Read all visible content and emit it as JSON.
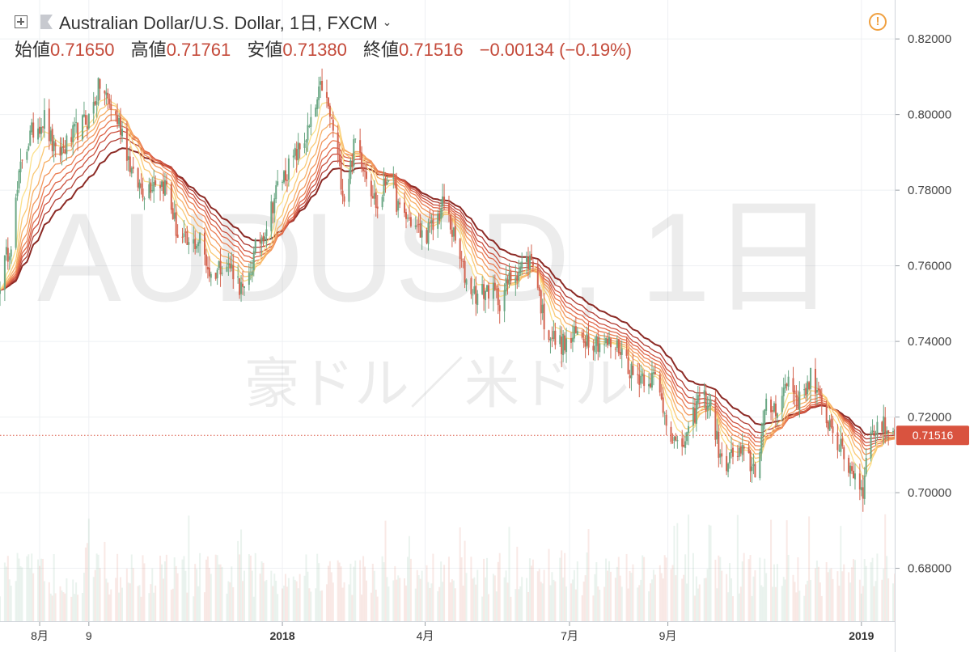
{
  "header": {
    "symbol_title": "Australian Dollar/U.S. Dollar, 1日, FXCM",
    "open_label": "始値",
    "open_value": "0.71650",
    "high_label": "高値",
    "high_value": "0.71761",
    "low_label": "安値",
    "low_value": "0.71380",
    "close_label": "終値",
    "close_value": "0.71516",
    "change": "−0.00134 (−0.19%)",
    "alert_glyph": "!"
  },
  "watermark": {
    "line1": "AUDUSD, 1日",
    "line2": "豪ドル／米ドル"
  },
  "colors": {
    "up": "#6aa784",
    "down": "#d4634f",
    "last_price_bg": "#d9533f",
    "ribbon": [
      "#fbe08a",
      "#fac872",
      "#f7ae64",
      "#f2955a",
      "#ea7c51",
      "#de6548",
      "#cc503e",
      "#b03c32",
      "#8c2a25"
    ]
  },
  "chart_data": {
    "type": "candlestick",
    "title": "Australian Dollar/U.S. Dollar, 1日, FXCM",
    "ylim": [
      0.666,
      0.8303
    ],
    "y_ticks": [
      {
        "value": 0.82,
        "label": "0.82000"
      },
      {
        "value": 0.8,
        "label": "0.80000"
      },
      {
        "value": 0.78,
        "label": "0.78000"
      },
      {
        "value": 0.76,
        "label": "0.76000"
      },
      {
        "value": 0.74,
        "label": "0.74000"
      },
      {
        "value": 0.72,
        "label": "0.72000"
      },
      {
        "value": 0.7,
        "label": "0.70000"
      },
      {
        "value": 0.68,
        "label": "0.68000"
      }
    ],
    "x_range": [
      "2017-07-07",
      "2019-01-22"
    ],
    "x_ticks": [
      {
        "date": "2017-08-01",
        "label": "8月",
        "bold": false
      },
      {
        "date": "2017-09-01",
        "label": "9",
        "bold": false
      },
      {
        "date": "2018-01-01",
        "label": "2018",
        "bold": true
      },
      {
        "date": "2018-04-01",
        "label": "4月",
        "bold": false
      },
      {
        "date": "2018-07-01",
        "label": "7月",
        "bold": false
      },
      {
        "date": "2018-09-01",
        "label": "9月",
        "bold": false
      },
      {
        "date": "2019-01-01",
        "label": "2019",
        "bold": true
      }
    ],
    "last_price": {
      "value": 0.71516,
      "label": "0.71516"
    },
    "price_path": [
      [
        "2017-07-07",
        0.756
      ],
      [
        "2017-07-14",
        0.767
      ],
      [
        "2017-07-21",
        0.789
      ],
      [
        "2017-07-28",
        0.796
      ],
      [
        "2017-08-04",
        0.799
      ],
      [
        "2017-08-11",
        0.789
      ],
      [
        "2017-08-18",
        0.792
      ],
      [
        "2017-08-25",
        0.796
      ],
      [
        "2017-09-01",
        0.799
      ],
      [
        "2017-09-08",
        0.808
      ],
      [
        "2017-09-15",
        0.802
      ],
      [
        "2017-09-22",
        0.796
      ],
      [
        "2017-09-29",
        0.783
      ],
      [
        "2017-10-06",
        0.78
      ],
      [
        "2017-10-13",
        0.783
      ],
      [
        "2017-10-20",
        0.781
      ],
      [
        "2017-10-27",
        0.768
      ],
      [
        "2017-11-03",
        0.765
      ],
      [
        "2017-11-10",
        0.767
      ],
      [
        "2017-11-17",
        0.757
      ],
      [
        "2017-11-24",
        0.761
      ],
      [
        "2017-12-01",
        0.759
      ],
      [
        "2017-12-08",
        0.752
      ],
      [
        "2017-12-15",
        0.764
      ],
      [
        "2017-12-22",
        0.771
      ],
      [
        "2017-12-29",
        0.781
      ],
      [
        "2018-01-05",
        0.786
      ],
      [
        "2018-01-12",
        0.791
      ],
      [
        "2018-01-19",
        0.797
      ],
      [
        "2018-01-26",
        0.808
      ],
      [
        "2018-02-02",
        0.796
      ],
      [
        "2018-02-09",
        0.778
      ],
      [
        "2018-02-16",
        0.793
      ],
      [
        "2018-02-23",
        0.785
      ],
      [
        "2018-03-02",
        0.775
      ],
      [
        "2018-03-09",
        0.785
      ],
      [
        "2018-03-16",
        0.774
      ],
      [
        "2018-03-23",
        0.772
      ],
      [
        "2018-03-30",
        0.768
      ],
      [
        "2018-04-06",
        0.77
      ],
      [
        "2018-04-13",
        0.777
      ],
      [
        "2018-04-20",
        0.766
      ],
      [
        "2018-04-27",
        0.756
      ],
      [
        "2018-05-04",
        0.752
      ],
      [
        "2018-05-11",
        0.754
      ],
      [
        "2018-05-18",
        0.751
      ],
      [
        "2018-05-25",
        0.757
      ],
      [
        "2018-06-01",
        0.76
      ],
      [
        "2018-06-08",
        0.762
      ],
      [
        "2018-06-15",
        0.745
      ],
      [
        "2018-06-22",
        0.74
      ],
      [
        "2018-06-29",
        0.739
      ],
      [
        "2018-07-06",
        0.742
      ],
      [
        "2018-07-13",
        0.741
      ],
      [
        "2018-07-20",
        0.74
      ],
      [
        "2018-07-27",
        0.739
      ],
      [
        "2018-08-03",
        0.738
      ],
      [
        "2018-08-10",
        0.731
      ],
      [
        "2018-08-17",
        0.731
      ],
      [
        "2018-08-24",
        0.73
      ],
      [
        "2018-08-31",
        0.72
      ],
      [
        "2018-09-07",
        0.711
      ],
      [
        "2018-09-14",
        0.715
      ],
      [
        "2018-09-21",
        0.726
      ],
      [
        "2018-09-28",
        0.723
      ],
      [
        "2018-10-05",
        0.707
      ],
      [
        "2018-10-12",
        0.71
      ],
      [
        "2018-10-19",
        0.71
      ],
      [
        "2018-10-26",
        0.706
      ],
      [
        "2018-11-02",
        0.722
      ],
      [
        "2018-11-09",
        0.723
      ],
      [
        "2018-11-16",
        0.73
      ],
      [
        "2018-11-23",
        0.724
      ],
      [
        "2018-11-30",
        0.731
      ],
      [
        "2018-12-07",
        0.722
      ],
      [
        "2018-12-14",
        0.717
      ],
      [
        "2018-12-21",
        0.709
      ],
      [
        "2018-12-28",
        0.705
      ],
      [
        "2019-01-02",
        0.7
      ],
      [
        "2019-01-04",
        0.712
      ],
      [
        "2019-01-11",
        0.718
      ],
      [
        "2019-01-18",
        0.717
      ],
      [
        "2019-01-22",
        0.7152
      ]
    ],
    "indicators": [
      "EMA ribbon (8 bands)",
      "Volume"
    ]
  }
}
